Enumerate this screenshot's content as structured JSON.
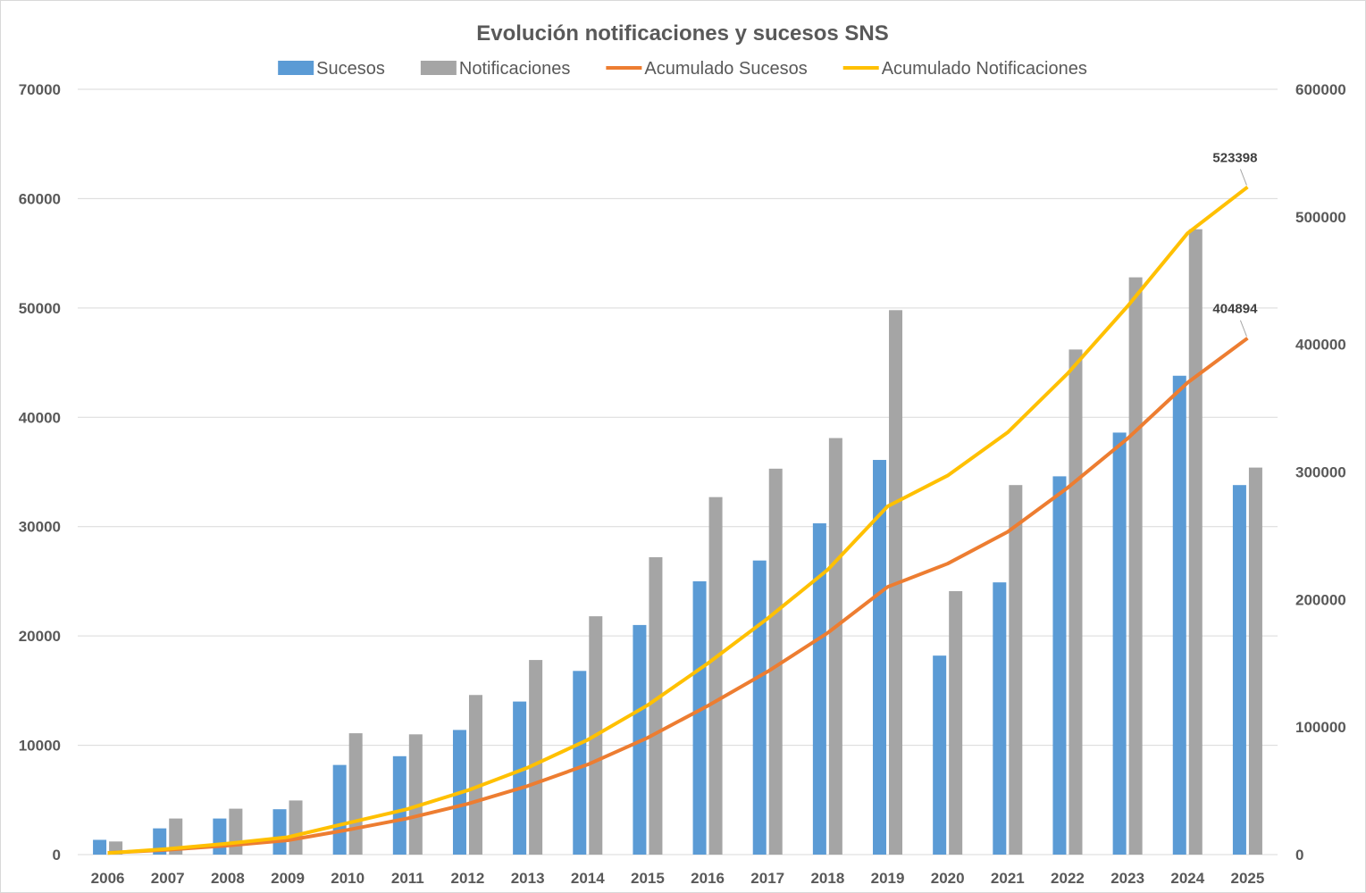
{
  "chart_data": {
    "type": "bar",
    "title": "Evolución notificaciones y sucesos SNS",
    "categories": [
      "2006",
      "2007",
      "2008",
      "2009",
      "2010",
      "2011",
      "2012",
      "2013",
      "2014",
      "2015",
      "2016",
      "2017",
      "2018",
      "2019",
      "2020",
      "2021",
      "2022",
      "2023",
      "2024",
      "2025"
    ],
    "series": [
      {
        "name": "Sucesos",
        "type": "bar",
        "axis": "left",
        "color": "#5b9bd5",
        "values": [
          1350,
          2400,
          3300,
          4150,
          8200,
          9000,
          11400,
          14000,
          16800,
          21000,
          25000,
          26900,
          30300,
          36100,
          18200,
          24900,
          34600,
          38600,
          43800,
          33800
        ]
      },
      {
        "name": "Notificaciones",
        "type": "bar",
        "axis": "left",
        "color": "#a5a5a5",
        "values": [
          1200,
          3300,
          4200,
          4950,
          11100,
          11000,
          14600,
          17800,
          21800,
          27200,
          32700,
          35300,
          38100,
          49800,
          24100,
          33800,
          46200,
          52800,
          57200,
          35400
        ]
      },
      {
        "name": "Acumulado Sucesos",
        "type": "line",
        "axis": "right",
        "color": "#ed7d31",
        "values": [
          1350,
          3750,
          7050,
          11200,
          19400,
          28400,
          39800,
          53800,
          70600,
          91600,
          116600,
          143500,
          173800,
          209900,
          228100,
          253000,
          287600,
          326200,
          370000,
          404894
        ]
      },
      {
        "name": "Acumulado Notificaciones",
        "type": "line",
        "axis": "right",
        "color": "#ffc000",
        "values": [
          1200,
          4500,
          8700,
          13650,
          24750,
          35750,
          50350,
          68150,
          89950,
          117150,
          149850,
          185150,
          223250,
          273050,
          297150,
          330950,
          377150,
          429950,
          487150,
          523398
        ]
      }
    ],
    "y_left": {
      "min": 0,
      "max": 70000,
      "ticks": [
        "0",
        "10000",
        "20000",
        "30000",
        "40000",
        "50000",
        "60000",
        "70000"
      ]
    },
    "y_right": {
      "min": 0,
      "max": 600000,
      "ticks": [
        "0",
        "100000",
        "200000",
        "300000",
        "400000",
        "500000",
        "600000"
      ]
    },
    "data_labels": [
      {
        "series": "Acumulado Notificaciones",
        "category": "2025",
        "text": "523398"
      },
      {
        "series": "Acumulado Sucesos",
        "category": "2025",
        "text": "404894"
      }
    ],
    "grid": true,
    "legend_position": "top"
  }
}
